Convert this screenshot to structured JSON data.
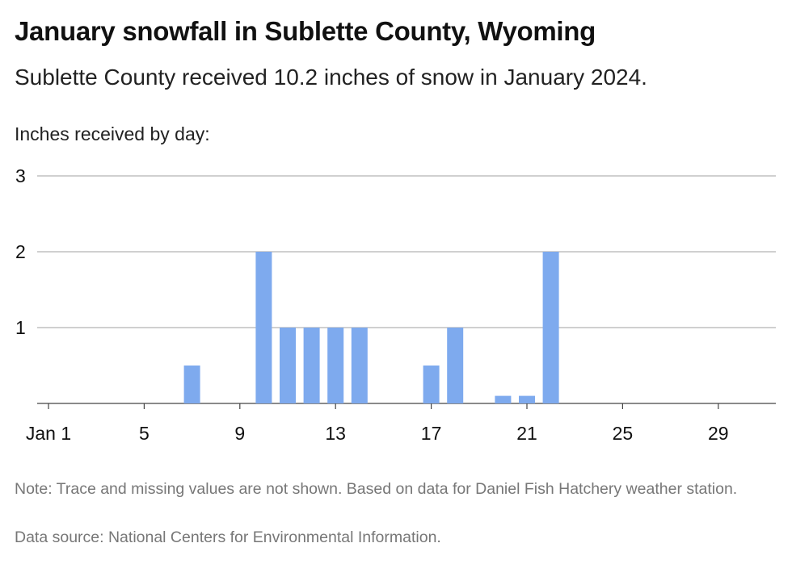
{
  "title": "January snowfall in Sublette County, Wyoming",
  "subtitle": "Sublette County received 10.2 inches of snow in January 2024.",
  "footer": {
    "note": "Note: Trace and missing values are not shown. Based on data for Daniel Fish Hatchery weather station.",
    "source": "Data source: National Centers for Environmental Information."
  },
  "chart_data": {
    "type": "bar",
    "title": "January snowfall in Sublette County, Wyoming",
    "subtitle": "Sublette County received 10.2 inches of snow in January 2024.",
    "xlabel": "",
    "ylabel": "Inches received by day:",
    "categories": [
      1,
      2,
      3,
      4,
      5,
      6,
      7,
      8,
      9,
      10,
      11,
      12,
      13,
      14,
      15,
      16,
      17,
      18,
      19,
      20,
      21,
      22,
      23,
      24,
      25,
      26,
      27,
      28,
      29,
      30,
      31
    ],
    "values": [
      0,
      0,
      0,
      0,
      0,
      0,
      0.5,
      0,
      0,
      2,
      1,
      1,
      1,
      1,
      0,
      0,
      0.5,
      1,
      0,
      0.1,
      0.1,
      2,
      0,
      0,
      0,
      0,
      0,
      0,
      0,
      0,
      0
    ],
    "x_tick_values": [
      1,
      5,
      9,
      13,
      17,
      21,
      25,
      29
    ],
    "x_tick_labels": [
      "Jan 1",
      "5",
      "9",
      "13",
      "17",
      "21",
      "25",
      "29"
    ],
    "y_ticks": [
      1,
      2,
      3
    ],
    "ylim": [
      0,
      3
    ],
    "grid": true,
    "legend": "none",
    "bar_color": "#7eaaee",
    "grid_color": "#b3b3b3"
  }
}
